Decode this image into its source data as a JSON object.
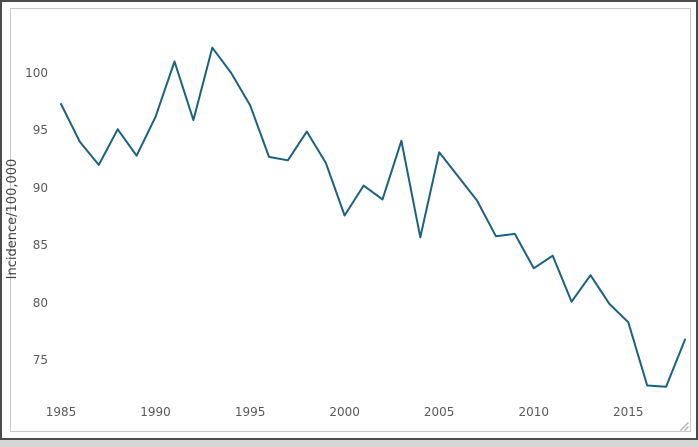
{
  "chart_data": {
    "type": "line",
    "title": "",
    "xlabel": "",
    "ylabel": "Incidence/100,000",
    "x": [
      1985,
      1986,
      1987,
      1988,
      1989,
      1990,
      1991,
      1992,
      1993,
      1994,
      1995,
      1996,
      1997,
      1998,
      1999,
      2000,
      2001,
      2002,
      2003,
      2004,
      2005,
      2006,
      2007,
      2008,
      2009,
      2010,
      2011,
      2012,
      2013,
      2014,
      2015,
      2016,
      2017,
      2018
    ],
    "series": [
      {
        "name": "Incidence per 100,000",
        "values": [
          97.3,
          94.0,
          92.0,
          95.1,
          92.8,
          96.2,
          101.0,
          95.9,
          102.2,
          100.0,
          97.2,
          92.7,
          92.4,
          94.9,
          92.2,
          87.6,
          90.2,
          89.0,
          94.1,
          85.7,
          93.1,
          91.0,
          88.9,
          85.8,
          86.0,
          83.0,
          84.1,
          80.1,
          82.4,
          79.9,
          78.3,
          72.8,
          72.7,
          76.8
        ]
      }
    ],
    "x_tick_labels": [
      "1985",
      "1990",
      "1995",
      "2000",
      "2005",
      "2010",
      "2015"
    ],
    "x_tick_values": [
      1985,
      1990,
      1995,
      2000,
      2005,
      2010,
      2015
    ],
    "y_tick_labels": [
      "75",
      "80",
      "85",
      "90",
      "95",
      "100"
    ],
    "y_tick_values": [
      75,
      80,
      85,
      90,
      95,
      100
    ],
    "xlim": [
      1985,
      2018
    ],
    "ylim": [
      72,
      103.6
    ],
    "grid": false,
    "legend_position": "none"
  },
  "colors": {
    "line": "#1b6180",
    "tick_label": "#5a5a5a",
    "axis_title": "#444444",
    "outer_frame": "#4b4b4b",
    "widget_border": "#c9c9c9",
    "background": "#ffffff",
    "grip": "#b4b4b4"
  }
}
